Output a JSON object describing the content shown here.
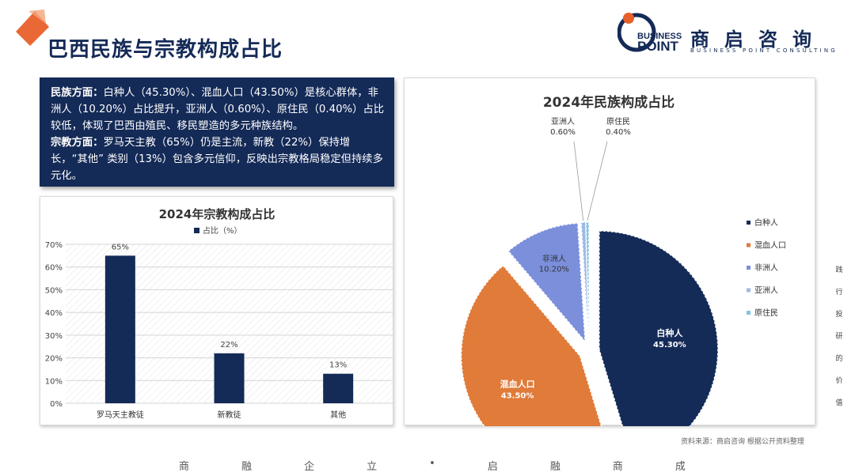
{
  "page": {
    "title": "巴西民族与宗教构成占比",
    "source_note": "资料来源：商启咨询 根据公开资料整理",
    "side_tagline": [
      "践",
      "行",
      "投",
      "研",
      "的",
      "价",
      "值"
    ],
    "footer_chars": [
      "商",
      "融",
      "企",
      "立",
      "•",
      "启",
      "融",
      "商",
      "成"
    ]
  },
  "logo": {
    "word1": "BUSINESS",
    "word2": "POINT",
    "cn": "商启咨询",
    "en": "BUSINESS POINT CONSULTING"
  },
  "summary": {
    "ethnic_label": "民族方面：",
    "ethnic_text": "白种人（45.30%）、混血人口（43.50%）是核心群体，非洲人（10.20%）占比提升，亚洲人（0.60%）、原住民（0.40%）占比较低，体现了巴西由殖民、移民塑造的多元种族结构。",
    "religion_label": "宗教方面：",
    "religion_text": "罗马天主教（65%）仍是主流，新教（22%）保持增长，“其他” 类别（13%）包含多元信仰，反映出宗教格局稳定但持续多元化。"
  },
  "colors": {
    "navy": "#142a57",
    "orange": "#e07b39",
    "periwinkle": "#7b8fdb",
    "lightblue": "#9fb9e6",
    "skyblue": "#84c4e1"
  },
  "chart_data": [
    {
      "type": "bar",
      "title": "2024年宗教构成占比",
      "legend": "占比（%）",
      "categories": [
        "罗马天主教徒",
        "新教徒",
        "其他"
      ],
      "values": [
        65,
        22,
        13
      ],
      "value_labels": [
        "65%",
        "22%",
        "13%"
      ],
      "ylim": [
        0,
        70
      ],
      "yticks": [
        "0%",
        "10%",
        "20%",
        "30%",
        "40%",
        "50%",
        "60%",
        "70%"
      ],
      "grid": true
    },
    {
      "type": "pie",
      "title": "2024年民族构成占比",
      "categories": [
        "白种人",
        "混血人口",
        "非洲人",
        "亚洲人",
        "原住民"
      ],
      "values": [
        45.3,
        43.5,
        10.2,
        0.6,
        0.4
      ],
      "value_labels": [
        "45.30%",
        "43.50%",
        "10.20%",
        "0.60%",
        "0.40%"
      ],
      "legend_position": "right"
    }
  ]
}
